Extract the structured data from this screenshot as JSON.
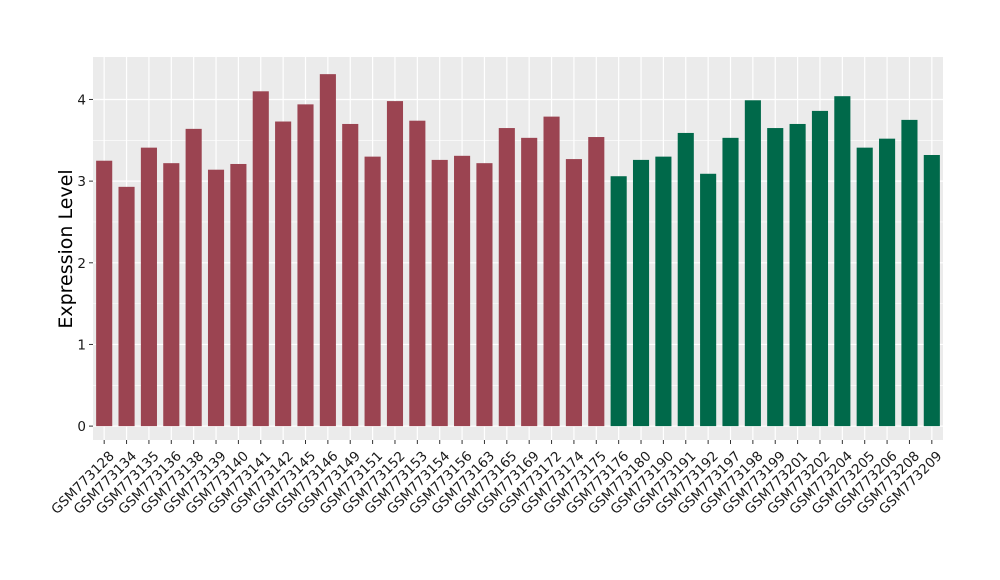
{
  "chart_data": {
    "type": "bar",
    "title": "",
    "xlabel": "",
    "ylabel": "Expression Level",
    "ylim": [
      -0.17,
      4.52
    ],
    "yticks": [
      0,
      1,
      2,
      3,
      4
    ],
    "grid": true,
    "legend": "none",
    "colors": {
      "group1": "#9b4451",
      "group2": "#00694a",
      "panel": "#ebebeb",
      "grid": "#ffffff"
    },
    "categories": [
      "GSM773128",
      "GSM773134",
      "GSM773135",
      "GSM773136",
      "GSM773138",
      "GSM773139",
      "GSM773140",
      "GSM773141",
      "GSM773142",
      "GSM773145",
      "GSM773146",
      "GSM773149",
      "GSM773151",
      "GSM773152",
      "GSM773153",
      "GSM773154",
      "GSM773156",
      "GSM773163",
      "GSM773165",
      "GSM773169",
      "GSM773172",
      "GSM773174",
      "GSM773175",
      "GSM773176",
      "GSM773180",
      "GSM773190",
      "GSM773191",
      "GSM773192",
      "GSM773197",
      "GSM773198",
      "GSM773199",
      "GSM773201",
      "GSM773202",
      "GSM773204",
      "GSM773205",
      "GSM773206",
      "GSM773208",
      "GSM773209"
    ],
    "values": [
      3.25,
      2.93,
      3.41,
      3.22,
      3.64,
      3.14,
      3.21,
      4.1,
      3.73,
      3.94,
      4.31,
      3.7,
      3.3,
      3.98,
      3.74,
      3.26,
      3.31,
      3.22,
      3.65,
      3.53,
      3.79,
      3.27,
      3.54,
      3.06,
      3.26,
      3.3,
      3.59,
      3.09,
      3.53,
      3.99,
      3.65,
      3.7,
      3.86,
      4.04,
      3.41,
      3.52,
      3.75,
      3.32
    ],
    "groups": [
      1,
      1,
      1,
      1,
      1,
      1,
      1,
      1,
      1,
      1,
      1,
      1,
      1,
      1,
      1,
      1,
      1,
      1,
      1,
      1,
      1,
      1,
      1,
      2,
      2,
      2,
      2,
      2,
      2,
      2,
      2,
      2,
      2,
      2,
      2,
      2,
      2,
      2
    ]
  }
}
